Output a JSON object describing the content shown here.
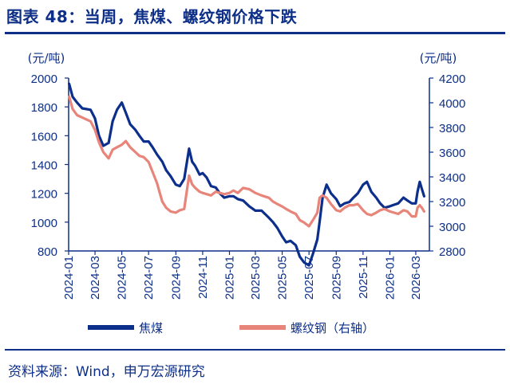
{
  "title": "图表 48：当周，焦煤、螺纹钢价格下跌",
  "source": "资料来源：Wind，申万宏源研究",
  "colors": {
    "title": "#0d2f87",
    "coking_coal": "#0d2f8c",
    "rebar": "#e8857a",
    "axis": "#0d2f87"
  },
  "chart_data": {
    "type": "line",
    "left_axis": {
      "unit": "(元/吨)",
      "ylim": [
        800,
        2000
      ],
      "ticks": [
        800,
        1000,
        1200,
        1400,
        1600,
        1800,
        2000
      ]
    },
    "right_axis": {
      "unit": "(元/吨)",
      "ylim": [
        2800,
        4200
      ],
      "ticks": [
        2800,
        3000,
        3200,
        3400,
        3600,
        3800,
        4000,
        4200
      ]
    },
    "x_range": [
      "2024-01-01",
      "2026-04-01"
    ],
    "x_ticks": [
      "2024-01",
      "2024-03",
      "2024-05",
      "2024-07",
      "2024-09",
      "2024-11",
      "2025-01",
      "2025-03",
      "2025-05",
      "2025-07",
      "2025-09",
      "2025-11",
      "2026-01",
      "2026-03"
    ],
    "grid": false,
    "legend_position": "bottom",
    "series": [
      {
        "name": "焦煤",
        "axis": "left",
        "x": [
          "2024-01-02",
          "2024-01-10",
          "2024-01-20",
          "2024-02-01",
          "2024-02-20",
          "2024-03-01",
          "2024-03-10",
          "2024-03-20",
          "2024-04-01",
          "2024-04-10",
          "2024-04-20",
          "2024-05-01",
          "2024-05-10",
          "2024-05-20",
          "2024-06-01",
          "2024-06-10",
          "2024-06-20",
          "2024-07-01",
          "2024-07-10",
          "2024-07-20",
          "2024-08-01",
          "2024-08-10",
          "2024-08-20",
          "2024-09-01",
          "2024-09-10",
          "2024-09-20",
          "2024-10-01",
          "2024-10-08",
          "2024-10-15",
          "2024-10-25",
          "2024-11-01",
          "2024-11-10",
          "2024-11-20",
          "2024-12-01",
          "2024-12-10",
          "2024-12-20",
          "2025-01-01",
          "2025-01-10",
          "2025-01-20",
          "2025-02-01",
          "2025-02-15",
          "2025-03-01",
          "2025-03-15",
          "2025-04-01",
          "2025-04-10",
          "2025-04-20",
          "2025-05-01",
          "2025-05-10",
          "2025-05-20",
          "2025-06-01",
          "2025-06-10",
          "2025-06-20",
          "2025-07-01",
          "2025-07-10",
          "2025-07-20",
          "2025-07-25",
          "2025-08-01",
          "2025-08-10",
          "2025-08-20",
          "2025-09-01",
          "2025-09-10",
          "2025-09-20",
          "2025-10-01",
          "2025-10-10",
          "2025-10-20",
          "2025-11-01",
          "2025-11-10",
          "2025-11-20",
          "2025-12-01",
          "2025-12-10",
          "2025-12-20",
          "2026-01-01",
          "2026-01-10",
          "2026-01-20",
          "2026-02-01",
          "2026-02-10",
          "2026-02-20",
          "2026-03-01",
          "2026-03-05",
          "2026-03-10",
          "2026-03-15",
          "2026-03-20"
        ],
        "values": [
          1960,
          1870,
          1830,
          1790,
          1780,
          1720,
          1600,
          1530,
          1550,
          1700,
          1780,
          1830,
          1760,
          1680,
          1640,
          1600,
          1560,
          1560,
          1520,
          1470,
          1420,
          1360,
          1320,
          1260,
          1250,
          1300,
          1510,
          1420,
          1390,
          1330,
          1340,
          1310,
          1250,
          1240,
          1200,
          1170,
          1180,
          1180,
          1160,
          1150,
          1110,
          1080,
          1080,
          1030,
          1000,
          960,
          900,
          860,
          870,
          840,
          760,
          720,
          700,
          780,
          880,
          1000,
          1170,
          1260,
          1200,
          1160,
          1110,
          1130,
          1140,
          1170,
          1200,
          1260,
          1280,
          1210,
          1170,
          1130,
          1100,
          1110,
          1120,
          1130,
          1170,
          1150,
          1130,
          1130,
          1210,
          1280,
          1230,
          1180
        ]
      },
      {
        "name": "螺纹钢（右轴）",
        "axis": "right",
        "x": [
          "2024-01-02",
          "2024-01-10",
          "2024-01-20",
          "2024-02-01",
          "2024-02-20",
          "2024-03-01",
          "2024-03-10",
          "2024-03-20",
          "2024-04-01",
          "2024-04-10",
          "2024-04-20",
          "2024-05-01",
          "2024-05-10",
          "2024-05-20",
          "2024-06-01",
          "2024-06-10",
          "2024-06-20",
          "2024-07-01",
          "2024-07-10",
          "2024-07-20",
          "2024-08-01",
          "2024-08-10",
          "2024-08-20",
          "2024-09-01",
          "2024-09-10",
          "2024-09-20",
          "2024-10-01",
          "2024-10-08",
          "2024-10-15",
          "2024-10-25",
          "2024-11-01",
          "2024-11-10",
          "2024-11-20",
          "2024-12-01",
          "2024-12-10",
          "2024-12-20",
          "2025-01-01",
          "2025-01-10",
          "2025-01-20",
          "2025-02-01",
          "2025-02-15",
          "2025-03-01",
          "2025-03-15",
          "2025-04-01",
          "2025-04-10",
          "2025-04-20",
          "2025-05-01",
          "2025-05-10",
          "2025-05-20",
          "2025-06-01",
          "2025-06-10",
          "2025-06-20",
          "2025-07-01",
          "2025-07-10",
          "2025-07-20",
          "2025-07-25",
          "2025-08-01",
          "2025-08-10",
          "2025-08-20",
          "2025-09-01",
          "2025-09-10",
          "2025-09-20",
          "2025-10-01",
          "2025-10-10",
          "2025-10-20",
          "2025-11-01",
          "2025-11-10",
          "2025-11-20",
          "2025-12-01",
          "2025-12-10",
          "2025-12-20",
          "2026-01-01",
          "2026-01-10",
          "2026-01-20",
          "2026-02-01",
          "2026-02-10",
          "2026-02-20",
          "2026-03-01",
          "2026-03-05",
          "2026-03-10",
          "2026-03-15",
          "2026-03-20"
        ],
        "values": [
          4050,
          3950,
          3900,
          3880,
          3850,
          3780,
          3680,
          3600,
          3550,
          3620,
          3640,
          3660,
          3690,
          3640,
          3600,
          3570,
          3560,
          3520,
          3440,
          3350,
          3200,
          3150,
          3120,
          3110,
          3130,
          3140,
          3410,
          3340,
          3310,
          3280,
          3270,
          3260,
          3250,
          3280,
          3270,
          3260,
          3270,
          3290,
          3270,
          3310,
          3300,
          3270,
          3250,
          3230,
          3200,
          3180,
          3160,
          3140,
          3120,
          3100,
          3050,
          3030,
          3000,
          3050,
          3110,
          3230,
          3250,
          3230,
          3180,
          3130,
          3120,
          3150,
          3170,
          3170,
          3180,
          3130,
          3100,
          3090,
          3110,
          3130,
          3140,
          3120,
          3110,
          3100,
          3130,
          3120,
          3080,
          3080,
          3150,
          3170,
          3150,
          3120
        ]
      }
    ]
  }
}
